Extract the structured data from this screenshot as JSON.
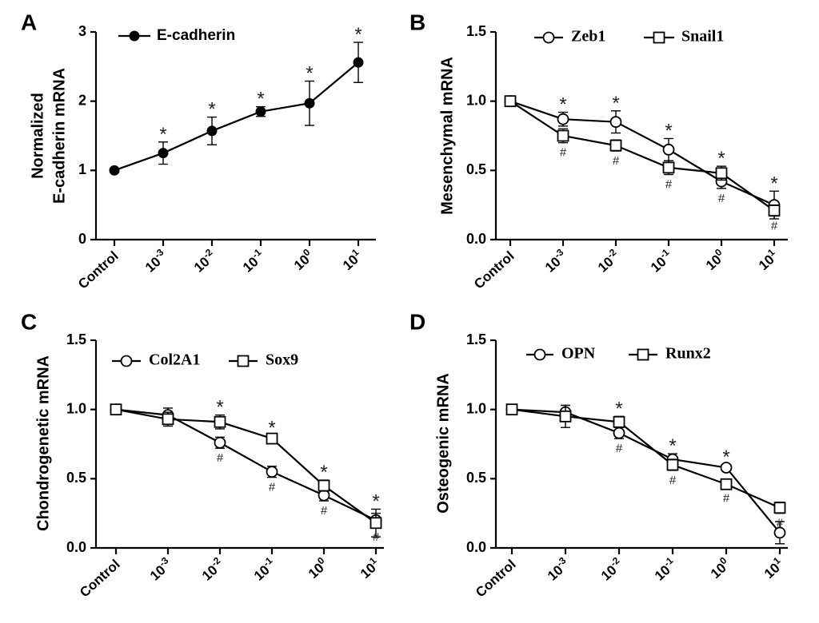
{
  "chart_data": [
    {
      "panel": "A",
      "type": "line",
      "ylabel": [
        "Normalized",
        "E-cadherin mRNA"
      ],
      "ylim": [
        0,
        3
      ],
      "yticks": [
        0,
        1,
        2,
        3
      ],
      "ytick_labels": [
        "0",
        "1",
        "2",
        "3"
      ],
      "categories": [
        {
          "base": "Control",
          "exp": ""
        },
        {
          "base": "10",
          "exp": "-3"
        },
        {
          "base": "10",
          "exp": "-2"
        },
        {
          "base": "10",
          "exp": "-1"
        },
        {
          "base": "10",
          "exp": "0"
        },
        {
          "base": "10",
          "exp": "1"
        }
      ],
      "legend": {
        "placement": "top-left",
        "font": "sans"
      },
      "series": [
        {
          "name": "E-cadherin",
          "marker": "filled-circle",
          "values": [
            1.0,
            1.25,
            1.57,
            1.85,
            1.97,
            2.56
          ],
          "errors": [
            0,
            0.16,
            0.2,
            0.07,
            0.32,
            0.29
          ]
        }
      ],
      "annotations": [
        {
          "text": "*",
          "category": 1,
          "series": 0
        },
        {
          "text": "*",
          "category": 2,
          "series": 0
        },
        {
          "text": "*",
          "category": 3,
          "series": 0
        },
        {
          "text": "*",
          "category": 4,
          "series": 0
        },
        {
          "text": "*",
          "category": 5,
          "series": 0
        }
      ]
    },
    {
      "panel": "B",
      "type": "line",
      "ylabel": [
        "Mesenchymal mRNA"
      ],
      "ylim": [
        0,
        1.5
      ],
      "yticks": [
        0,
        0.5,
        1.0,
        1.5
      ],
      "ytick_labels": [
        "0.0",
        "0.5",
        "1.0",
        "1.5"
      ],
      "categories": [
        {
          "base": "Control",
          "exp": ""
        },
        {
          "base": "10",
          "exp": "-3"
        },
        {
          "base": "10",
          "exp": "-2"
        },
        {
          "base": "10",
          "exp": "-1"
        },
        {
          "base": "10",
          "exp": "0"
        },
        {
          "base": "10",
          "exp": "1"
        }
      ],
      "legend": {
        "placement": "top",
        "font": "serif"
      },
      "series": [
        {
          "name": "Zeb1",
          "marker": "open-circle",
          "values": [
            1.0,
            0.87,
            0.85,
            0.65,
            0.42,
            0.25
          ],
          "errors": [
            0,
            0.05,
            0.08,
            0.08,
            0.05,
            0.1
          ]
        },
        {
          "name": "Snail1",
          "marker": "open-square",
          "values": [
            1.0,
            0.75,
            0.68,
            0.52,
            0.48,
            0.21
          ],
          "errors": [
            0,
            0.05,
            0.04,
            0.05,
            0.05,
            0.04
          ]
        }
      ],
      "annotations": [
        {
          "text": "*",
          "category": 1,
          "series": 0
        },
        {
          "text": "*",
          "category": 2,
          "series": 0
        },
        {
          "text": "*",
          "category": 3,
          "series": 0
        },
        {
          "text": "*",
          "category": 4,
          "series": 1
        },
        {
          "text": "*",
          "category": 5,
          "series": 0
        },
        {
          "text": "#",
          "category": 1,
          "series": 1
        },
        {
          "text": "#",
          "category": 2,
          "series": 1
        },
        {
          "text": "#",
          "category": 3,
          "series": 1
        },
        {
          "text": "#",
          "category": 4,
          "series": 0
        },
        {
          "text": "#",
          "category": 5,
          "series": 1
        }
      ]
    },
    {
      "panel": "C",
      "type": "line",
      "ylabel": [
        "Chondrogenetic mRNA"
      ],
      "ylim": [
        0,
        1.5
      ],
      "yticks": [
        0,
        0.5,
        1.0,
        1.5
      ],
      "ytick_labels": [
        "0.0",
        "0.5",
        "1.0",
        "1.5"
      ],
      "categories": [
        {
          "base": "Control",
          "exp": ""
        },
        {
          "base": "10",
          "exp": "-3"
        },
        {
          "base": "10",
          "exp": "-2"
        },
        {
          "base": "10",
          "exp": "-1"
        },
        {
          "base": "10",
          "exp": "0"
        },
        {
          "base": "10",
          "exp": "1"
        }
      ],
      "legend": {
        "placement": "top",
        "font": "serif"
      },
      "series": [
        {
          "name": "Col2A1",
          "marker": "open-circle",
          "values": [
            1.0,
            0.96,
            0.76,
            0.55,
            0.38,
            0.2
          ],
          "errors": [
            0,
            0.05,
            0.04,
            0.04,
            0.04,
            0.05
          ]
        },
        {
          "name": "Sox9",
          "marker": "open-square",
          "values": [
            1.0,
            0.93,
            0.91,
            0.79,
            0.45,
            0.18
          ],
          "errors": [
            0,
            0.05,
            0.05,
            0.02,
            0.04,
            0.1
          ]
        }
      ],
      "annotations": [
        {
          "text": "*",
          "category": 2,
          "series": 1
        },
        {
          "text": "*",
          "category": 3,
          "series": 1
        },
        {
          "text": "*",
          "category": 4,
          "series": 1
        },
        {
          "text": "*",
          "category": 5,
          "series": 1
        },
        {
          "text": "#",
          "category": 2,
          "series": 0
        },
        {
          "text": "#",
          "category": 3,
          "series": 0
        },
        {
          "text": "#",
          "category": 4,
          "series": 0
        },
        {
          "text": "#",
          "category": 5,
          "series": 0
        }
      ]
    },
    {
      "panel": "D",
      "type": "line",
      "ylabel": [
        "Osteogenic mRNA"
      ],
      "ylim": [
        0,
        1.5
      ],
      "yticks": [
        0,
        0.5,
        1.0,
        1.5
      ],
      "ytick_labels": [
        "0.0",
        "0.5",
        "1.0",
        "1.5"
      ],
      "categories": [
        {
          "base": "Control",
          "exp": ""
        },
        {
          "base": "10",
          "exp": "-3"
        },
        {
          "base": "10",
          "exp": "-2"
        },
        {
          "base": "10",
          "exp": "-1"
        },
        {
          "base": "10",
          "exp": "0"
        },
        {
          "base": "10",
          "exp": "1"
        }
      ],
      "legend": {
        "placement": "top",
        "font": "serif"
      },
      "series": [
        {
          "name": "OPN",
          "marker": "open-circle",
          "values": [
            1.0,
            0.98,
            0.83,
            0.64,
            0.58,
            0.11
          ],
          "errors": [
            0,
            0.05,
            0.04,
            0.04,
            0.02,
            0.08
          ]
        },
        {
          "name": "Runx2",
          "marker": "open-square",
          "values": [
            1.0,
            0.95,
            0.91,
            0.6,
            0.46,
            0.29
          ],
          "errors": [
            0,
            0.08,
            0.04,
            0.04,
            0.03,
            0.04
          ]
        }
      ],
      "annotations": [
        {
          "text": "*",
          "category": 2,
          "series": 1
        },
        {
          "text": "*",
          "category": 3,
          "series": 0
        },
        {
          "text": "*",
          "category": 4,
          "series": 0
        },
        {
          "text": "#",
          "category": 2,
          "series": 0
        },
        {
          "text": "#",
          "category": 3,
          "series": 1
        },
        {
          "text": "#",
          "category": 4,
          "series": 1
        },
        {
          "text": "#",
          "category": 5,
          "series": 1
        }
      ]
    }
  ]
}
